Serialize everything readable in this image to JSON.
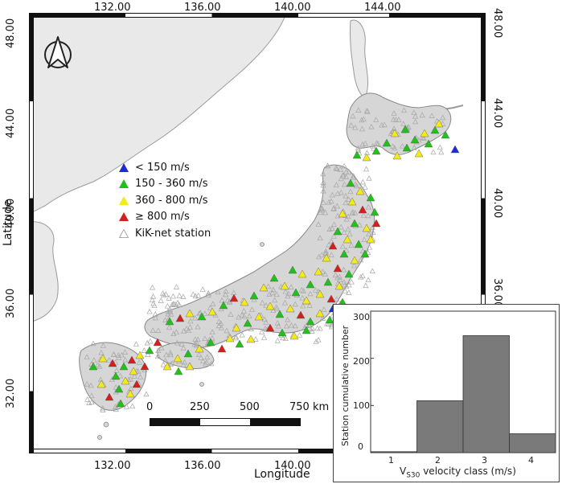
{
  "map": {
    "top_ticks": [
      "132.00",
      "136.00",
      "140.00",
      "144.00"
    ],
    "bottom_ticks": [
      "132.00",
      "136.00",
      "140.00"
    ],
    "left_ticks": [
      "48.00",
      "44.00",
      "40.00",
      "36.00",
      "32.00"
    ],
    "right_ticks": [
      "48.00",
      "44.00",
      "40.00",
      "36.00"
    ],
    "x_axis_title": "Longitude",
    "y_axis_title": "Latitude",
    "colors": {
      "sea": "#ffffff",
      "foreign_land": "#e9e9e9",
      "japan": "#d6d6d6",
      "frame": "#111111"
    }
  },
  "legend": [
    {
      "label": "< 150 m/s",
      "color": "#1c2bd6"
    },
    {
      "label": "150 - 360 m/s",
      "color": "#22c01a"
    },
    {
      "label": "360 - 800 m/s",
      "color": "#f2ea1c"
    },
    {
      "label": "≥ 800 m/s",
      "color": "#d41f1f"
    },
    {
      "label": "KiK-net station",
      "color": "#c8c8c8"
    }
  ],
  "scale_bar": {
    "labels": [
      "0",
      "250",
      "500",
      "750 km"
    ]
  },
  "compass": {
    "icon": "north-arrow-icon"
  },
  "chart_data": {
    "type": "bar",
    "categories": [
      "1",
      "2",
      "3",
      "4"
    ],
    "values": [
      2,
      110,
      248,
      40
    ],
    "ylim": [
      0,
      300
    ],
    "yticks": [
      "0",
      "100",
      "200",
      "300"
    ],
    "ylabel": "Station cumulative number",
    "xlabel_main": "V",
    "xlabel_sub": "S30",
    "xlabel_rest": " velocity class (m/s)",
    "bar_color": "#7a7a7a"
  },
  "stations": [
    {
      "c": "y",
      "x": 455,
      "y": 150
    },
    {
      "c": "g",
      "x": 468,
      "y": 145
    },
    {
      "c": "g",
      "x": 480,
      "y": 158
    },
    {
      "c": "y",
      "x": 492,
      "y": 150
    },
    {
      "c": "g",
      "x": 505,
      "y": 146
    },
    {
      "c": "g",
      "x": 518,
      "y": 152
    },
    {
      "c": "y",
      "x": 510,
      "y": 138
    },
    {
      "c": "g",
      "x": 497,
      "y": 163
    },
    {
      "c": "b",
      "x": 530,
      "y": 170
    },
    {
      "c": "g",
      "x": 470,
      "y": 168
    },
    {
      "c": "y",
      "x": 458,
      "y": 178
    },
    {
      "c": "g",
      "x": 445,
      "y": 162
    },
    {
      "c": "g",
      "x": 432,
      "y": 172
    },
    {
      "c": "y",
      "x": 420,
      "y": 180
    },
    {
      "c": "g",
      "x": 408,
      "y": 177
    },
    {
      "c": "y",
      "x": 485,
      "y": 175
    },
    {
      "c": "g",
      "x": 400,
      "y": 212
    },
    {
      "c": "y",
      "x": 412,
      "y": 222
    },
    {
      "c": "g",
      "x": 425,
      "y": 230
    },
    {
      "c": "y",
      "x": 402,
      "y": 235
    },
    {
      "c": "r",
      "x": 415,
      "y": 245
    },
    {
      "c": "g",
      "x": 430,
      "y": 248
    },
    {
      "c": "y",
      "x": 390,
      "y": 250
    },
    {
      "c": "g",
      "x": 405,
      "y": 262
    },
    {
      "c": "y",
      "x": 420,
      "y": 268
    },
    {
      "c": "r",
      "x": 432,
      "y": 262
    },
    {
      "c": "g",
      "x": 384,
      "y": 272
    },
    {
      "c": "y",
      "x": 396,
      "y": 282
    },
    {
      "c": "g",
      "x": 410,
      "y": 288
    },
    {
      "c": "y",
      "x": 425,
      "y": 282
    },
    {
      "c": "r",
      "x": 378,
      "y": 290
    },
    {
      "c": "g",
      "x": 392,
      "y": 300
    },
    {
      "c": "y",
      "x": 405,
      "y": 308
    },
    {
      "c": "g",
      "x": 418,
      "y": 300
    },
    {
      "c": "y",
      "x": 370,
      "y": 305
    },
    {
      "c": "r",
      "x": 384,
      "y": 318
    },
    {
      "c": "g",
      "x": 398,
      "y": 325
    },
    {
      "c": "y",
      "x": 360,
      "y": 322
    },
    {
      "c": "g",
      "x": 372,
      "y": 335
    },
    {
      "c": "y",
      "x": 386,
      "y": 340
    },
    {
      "c": "g",
      "x": 350,
      "y": 338
    },
    {
      "c": "y",
      "x": 340,
      "y": 325
    },
    {
      "c": "g",
      "x": 328,
      "y": 320
    },
    {
      "c": "y",
      "x": 362,
      "y": 350
    },
    {
      "c": "r",
      "x": 376,
      "y": 356
    },
    {
      "c": "g",
      "x": 390,
      "y": 360
    },
    {
      "c": "y",
      "x": 345,
      "y": 358
    },
    {
      "c": "g",
      "x": 332,
      "y": 348
    },
    {
      "c": "y",
      "x": 318,
      "y": 340
    },
    {
      "c": "g",
      "x": 305,
      "y": 330
    },
    {
      "c": "y",
      "x": 292,
      "y": 342
    },
    {
      "c": "g",
      "x": 280,
      "y": 352
    },
    {
      "c": "y",
      "x": 268,
      "y": 360
    },
    {
      "c": "r",
      "x": 255,
      "y": 355
    },
    {
      "c": "g",
      "x": 242,
      "y": 364
    },
    {
      "c": "y",
      "x": 228,
      "y": 372
    },
    {
      "c": "g",
      "x": 215,
      "y": 378
    },
    {
      "c": "y",
      "x": 200,
      "y": 374
    },
    {
      "c": "r",
      "x": 188,
      "y": 380
    },
    {
      "c": "g",
      "x": 175,
      "y": 384
    },
    {
      "c": "y",
      "x": 300,
      "y": 365
    },
    {
      "c": "g",
      "x": 312,
      "y": 375
    },
    {
      "c": "y",
      "x": 325,
      "y": 368
    },
    {
      "c": "r",
      "x": 338,
      "y": 376
    },
    {
      "c": "g",
      "x": 350,
      "y": 384
    },
    {
      "c": "y",
      "x": 362,
      "y": 374
    },
    {
      "c": "g",
      "x": 374,
      "y": 382
    },
    {
      "c": "y",
      "x": 286,
      "y": 378
    },
    {
      "c": "g",
      "x": 272,
      "y": 386
    },
    {
      "c": "y",
      "x": 258,
      "y": 392
    },
    {
      "c": "r",
      "x": 300,
      "y": 392
    },
    {
      "c": "g",
      "x": 315,
      "y": 398
    },
    {
      "c": "y",
      "x": 250,
      "y": 405
    },
    {
      "c": "g",
      "x": 262,
      "y": 412
    },
    {
      "c": "y",
      "x": 276,
      "y": 406
    },
    {
      "c": "r",
      "x": 240,
      "y": 418
    },
    {
      "c": "g",
      "x": 226,
      "y": 410
    },
    {
      "c": "y",
      "x": 212,
      "y": 418
    },
    {
      "c": "g",
      "x": 198,
      "y": 424
    },
    {
      "c": "y",
      "x": 185,
      "y": 430
    },
    {
      "c": "r",
      "x": 160,
      "y": 410
    },
    {
      "c": "g",
      "x": 150,
      "y": 420
    },
    {
      "c": "y",
      "x": 138,
      "y": 426
    },
    {
      "c": "r",
      "x": 128,
      "y": 432
    },
    {
      "c": "g",
      "x": 118,
      "y": 440
    },
    {
      "c": "y",
      "x": 130,
      "y": 446
    },
    {
      "c": "r",
      "x": 144,
      "y": 440
    },
    {
      "c": "g",
      "x": 108,
      "y": 452
    },
    {
      "c": "y",
      "x": 120,
      "y": 458
    },
    {
      "c": "r",
      "x": 134,
      "y": 462
    },
    {
      "c": "g",
      "x": 112,
      "y": 468
    },
    {
      "c": "y",
      "x": 126,
      "y": 474
    },
    {
      "c": "r",
      "x": 100,
      "y": 478
    },
    {
      "c": "g",
      "x": 114,
      "y": 486
    },
    {
      "c": "y",
      "x": 90,
      "y": 462
    },
    {
      "c": "g",
      "x": 80,
      "y": 440
    },
    {
      "c": "y",
      "x": 92,
      "y": 430
    },
    {
      "c": "r",
      "x": 104,
      "y": 436
    },
    {
      "c": "y",
      "x": 172,
      "y": 440
    },
    {
      "c": "g",
      "x": 186,
      "y": 446
    },
    {
      "c": "y",
      "x": 200,
      "y": 440
    },
    {
      "c": "g",
      "x": 345,
      "y": 395
    },
    {
      "c": "y",
      "x": 330,
      "y": 402
    },
    {
      "c": "b",
      "x": 378,
      "y": 368
    }
  ]
}
